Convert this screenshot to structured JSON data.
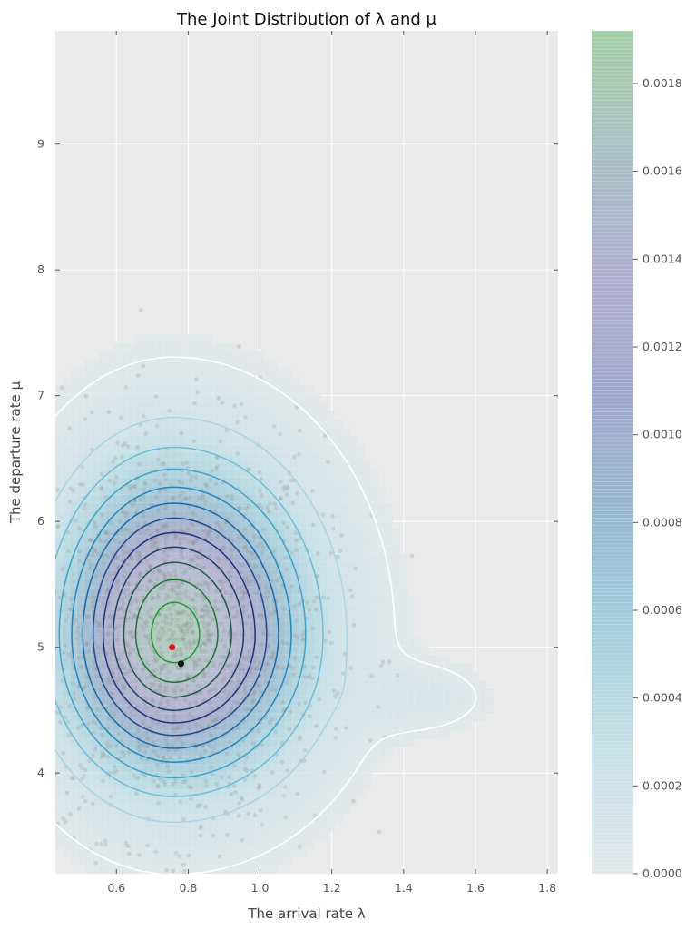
{
  "chart_data": {
    "type": "heatmap",
    "title": "The Joint Distribution of λ and μ",
    "xlabel": "The arrival rate λ",
    "ylabel": "The departure rate μ",
    "xlim": [
      0.43,
      1.83
    ],
    "ylim": [
      3.2,
      9.9
    ],
    "xticks": [
      0.6,
      0.8,
      1.0,
      1.2,
      1.4,
      1.6,
      1.8
    ],
    "xtick_labels": [
      "0.6",
      "0.8",
      "1.0",
      "1.2",
      "1.4",
      "1.6",
      "1.8"
    ],
    "yticks": [
      4,
      5,
      6,
      7,
      8,
      9
    ],
    "ytick_labels": [
      "4",
      "5",
      "6",
      "7",
      "8",
      "9"
    ],
    "grid": true,
    "density_mode": {
      "lambda": 0.76,
      "mu": 5.1,
      "sigma_lambda": 0.2,
      "sigma_mu": 0.75
    },
    "contour_levels": [
      5e-05,
      0.0002,
      0.00035,
      0.0005,
      0.00065,
      0.0008,
      0.00095,
      0.0011,
      0.00125,
      0.0014,
      0.00155,
      0.0017
    ],
    "contour_colors": [
      "#ffffff",
      "#a8d4e6",
      "#6dbcd8",
      "#3ea2c7",
      "#2286b8",
      "#1c68a6",
      "#1d4a92",
      "#1f2f7c",
      "#1e3d62",
      "#1e5a48",
      "#1d7536",
      "#1b9a2e"
    ],
    "markers": [
      {
        "name": "point-red",
        "lambda": 0.755,
        "mu": 5.0,
        "color": "#e8151b"
      },
      {
        "name": "point-black",
        "lambda": 0.78,
        "mu": 4.87,
        "color": "#111111"
      }
    ],
    "colorbar": {
      "range": [
        0,
        0.00192
      ],
      "ticks": [
        0.0,
        0.0002,
        0.0004,
        0.0006,
        0.0008,
        0.001,
        0.0012,
        0.0014,
        0.0016,
        0.0018
      ],
      "tick_labels": [
        "0.0000",
        "0.0002",
        "0.0004",
        "0.0006",
        "0.0008",
        "0.0010",
        "0.0012",
        "0.0014",
        "0.0016",
        "0.0018"
      ],
      "colors": [
        "#e3e7e9",
        "#c6e1e8",
        "#a5cfdc",
        "#95b8cf",
        "#a2a7c9",
        "#b0aed0",
        "#a9c0c3",
        "#a3cfa6"
      ]
    },
    "colors": {
      "plot_background": "#eaeaea",
      "scatter": "#8a8a8a"
    }
  }
}
